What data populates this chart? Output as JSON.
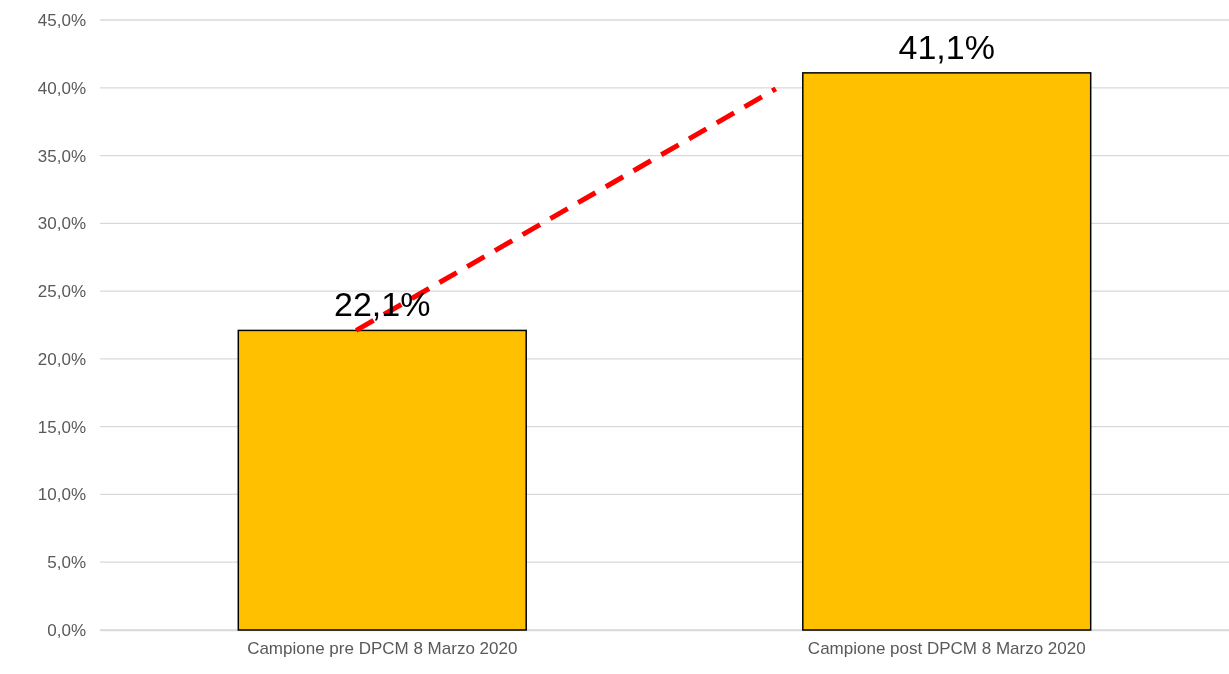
{
  "chart_data": {
    "type": "bar",
    "categories": [
      "Campione pre DPCM 8 Marzo 2020",
      "Campione post DPCM 8 Marzo 2020"
    ],
    "values": [
      22.1,
      41.1
    ],
    "value_labels": [
      "22,1%",
      "41,1%"
    ],
    "color": "#ffc000",
    "ylim": [
      0,
      45
    ],
    "yticks": [
      {
        "value": 0,
        "label": "0,0%"
      },
      {
        "value": 5,
        "label": "5,0%"
      },
      {
        "value": 10,
        "label": "10,0%"
      },
      {
        "value": 15,
        "label": "15,0%"
      },
      {
        "value": 20,
        "label": "20,0%"
      },
      {
        "value": 25,
        "label": "25,0%"
      },
      {
        "value": 30,
        "label": "30,0%"
      },
      {
        "value": 35,
        "label": "35,0%"
      },
      {
        "value": 40,
        "label": "40,0%"
      },
      {
        "value": 45,
        "label": "45,0%"
      }
    ],
    "grid": "y"
  }
}
